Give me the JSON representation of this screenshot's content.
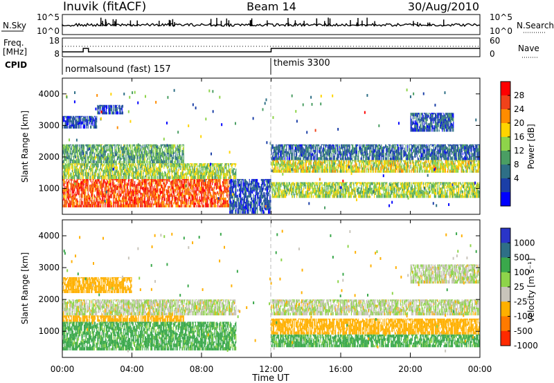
{
  "header": {
    "station": "Inuvik (fitACF)",
    "beam": "Beam 14",
    "date": "30/Aug/2010"
  },
  "top_panels": {
    "nsky_label": "N.Sky",
    "nsearch_label": "N.Search",
    "nsky_ticks": [
      "10^5",
      "10^0"
    ],
    "nsearch_ticks": [
      "10^5",
      "10^0"
    ],
    "freq_label_1": "Freq.",
    "freq_label_2": "[MHz]",
    "freq_ticks": [
      "18",
      "8"
    ],
    "nave_label": "Nave",
    "nave_ticks": [
      "60",
      "0"
    ],
    "cpid_label": "CPID",
    "cpid_segments": [
      {
        "name": "normalsound (fast) 157",
        "start_hour": 0,
        "end_hour": 12
      },
      {
        "name": "themis 3300",
        "start_hour": 12,
        "end_hour": 24
      }
    ]
  },
  "axes": {
    "xlabel": "Time UT",
    "ylabel": "Slant Range [km]",
    "x_ticks": [
      "00:00",
      "04:00",
      "08:00",
      "12:00",
      "16:00",
      "20:00",
      "00:00"
    ],
    "y_ticks": [
      "1000",
      "2000",
      "3000",
      "4000"
    ]
  },
  "power_colorbar": {
    "label": "Power [dB]",
    "ticks": [
      "28",
      "24",
      "20",
      "16",
      "12",
      "8",
      "4"
    ],
    "colors": [
      "#ff0000",
      "#f0421a",
      "#ff8c00",
      "#ffd400",
      "#8ed44a",
      "#4a9e63",
      "#2e6f86",
      "#1b3fa7",
      "#0000ff"
    ]
  },
  "velocity_colorbar": {
    "label": "Velocity [m s⁻¹]",
    "ticks": [
      "1000",
      "500",
      "100",
      "25",
      "-25",
      "-100",
      "-500",
      "-1000"
    ],
    "colors": [
      "#2a35c8",
      "#2e6f86",
      "#3aa84b",
      "#8ed44a",
      "#c8c4ba",
      "#ffb000",
      "#ff7a00",
      "#ff2a00"
    ]
  },
  "chart_data": [
    {
      "type": "heatmap",
      "title": "Power [dB]",
      "xlabel": "",
      "ylabel": "Slant Range [km]",
      "xlim": [
        0,
        24
      ],
      "ylim": [
        180,
        4500
      ],
      "cells": [
        {
          "x": [
            0,
            9.6
          ],
          "y": [
            400,
            1300
          ],
          "value": 26
        },
        {
          "x": [
            0,
            10
          ],
          "y": [
            1300,
            1800
          ],
          "value": 16
        },
        {
          "x": [
            0,
            7
          ],
          "y": [
            1800,
            2400
          ],
          "value": 13
        },
        {
          "x": [
            0,
            2
          ],
          "y": [
            2900,
            3300
          ],
          "value": 6
        },
        {
          "x": [
            2,
            3.5
          ],
          "y": [
            3350,
            3650
          ],
          "value": 6
        },
        {
          "x": [
            9.6,
            12
          ],
          "y": [
            200,
            1300
          ],
          "value": 6
        },
        {
          "x": [
            12,
            24
          ],
          "y": [
            1500,
            1900
          ],
          "value": 18
        },
        {
          "x": [
            12,
            24
          ],
          "y": [
            700,
            1200
          ],
          "value": 16
        },
        {
          "x": [
            12,
            24
          ],
          "y": [
            1900,
            2400
          ],
          "value": 8
        },
        {
          "x": [
            20,
            22.5
          ],
          "y": [
            2800,
            3400
          ],
          "value": 7
        }
      ]
    },
    {
      "type": "heatmap",
      "title": "Velocity [m s⁻¹]",
      "xlabel": "Time UT",
      "ylabel": "Slant Range [km]",
      "xlim": [
        0,
        24
      ],
      "ylim": [
        180,
        4500
      ],
      "cells": [
        {
          "x": [
            0,
            10
          ],
          "y": [
            400,
            1300
          ],
          "value": 100
        },
        {
          "x": [
            0,
            7
          ],
          "y": [
            1300,
            1500
          ],
          "value": -150
        },
        {
          "x": [
            0,
            10
          ],
          "y": [
            1500,
            2000
          ],
          "value": -10
        },
        {
          "x": [
            0,
            4
          ],
          "y": [
            2200,
            2700
          ],
          "value": -150
        },
        {
          "x": [
            12,
            24
          ],
          "y": [
            1500,
            2000
          ],
          "value": -10
        },
        {
          "x": [
            12,
            24
          ],
          "y": [
            900,
            1400
          ],
          "value": -150
        },
        {
          "x": [
            12,
            24
          ],
          "y": [
            500,
            900
          ],
          "value": 100
        },
        {
          "x": [
            20,
            24
          ],
          "y": [
            2500,
            3100
          ],
          "value": -10
        }
      ]
    }
  ]
}
